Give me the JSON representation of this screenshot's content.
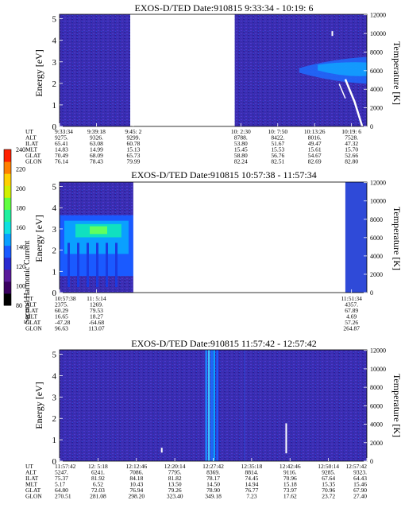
{
  "panels": [
    {
      "title": "EXOS-D/TED   Date:910815  9:33:34 - 10:19: 6",
      "left_axis_label": "Energy [eV]",
      "right_axis_label": "Temperature [K]",
      "y_ticks": [
        "0",
        "1",
        "2",
        "3",
        "4",
        "5"
      ],
      "t_ticks": [
        "0",
        "2000",
        "4000",
        "6000",
        "8000",
        "10000",
        "12000"
      ],
      "gap": [
        0.23,
        0.57
      ],
      "row_labels": [
        "UT",
        "ALT",
        "ILAT",
        "MLT",
        "GLAT",
        "GLON"
      ],
      "columns": [
        {
          "pos": 0.0,
          "values": [
            "9:33:34",
            "9275.",
            "65.41",
            "14.83",
            "70.49",
            "76.14"
          ]
        },
        {
          "pos": 0.12,
          "values": [
            "9:39:18",
            "9326.",
            "63.08",
            "14.99",
            "68.09",
            "78.43"
          ]
        },
        {
          "pos": 0.24,
          "values": [
            "9:45: 2",
            "9299.",
            "60.78",
            "15.13",
            "65.73",
            "79.99"
          ]
        },
        {
          "pos": 0.59,
          "values": [
            "10: 2:30",
            "8788.",
            "53.80",
            "15.45",
            "58.80",
            "82.24"
          ]
        },
        {
          "pos": 0.71,
          "values": [
            "10: 7:50",
            "8422.",
            "51.67",
            "15.53",
            "56.76",
            "82.51"
          ]
        },
        {
          "pos": 0.83,
          "values": [
            "10:13:26",
            "8016.",
            "49.47",
            "15.61",
            "54.67",
            "82.69"
          ]
        },
        {
          "pos": 0.95,
          "values": [
            "10:19: 6",
            "7528.",
            "47.32",
            "15.70",
            "52.66",
            "82.80"
          ]
        }
      ]
    },
    {
      "title": "EXOS-D/TED   Date:910815  10:57:38 - 11:57:34",
      "left_axis_label": "Energy [eV]",
      "right_axis_label": "Temperature [K]",
      "y_ticks": [
        "0",
        "1",
        "2",
        "3",
        "4",
        "5"
      ],
      "t_ticks": [
        "0",
        "2000",
        "4000",
        "6000",
        "8000",
        "10000",
        "12000"
      ],
      "gap": [
        0.24,
        0.93
      ],
      "row_labels": [
        "UT",
        "ALT",
        "ILAT",
        "MLT",
        "GLAT",
        "GLON"
      ],
      "columns": [
        {
          "pos": 0.0,
          "values": [
            "10:57:38",
            "2375.",
            "60.29",
            "16.65",
            "-47.28",
            "96.63"
          ]
        },
        {
          "pos": 0.12,
          "values": [
            "11: 5:14",
            "1269.",
            "79.53",
            "18.27",
            "-64.68",
            "113.07"
          ]
        },
        {
          "pos": 0.95,
          "values": [
            "11:51:34",
            "4357.",
            "67.89",
            "4.69",
            "57.26",
            "264.87"
          ]
        }
      ]
    },
    {
      "title": "EXOS-D/TED   Date:910815  11:57:42 - 12:57:42",
      "left_axis_label": "Energy [eV]",
      "right_axis_label": "Temperature [K]",
      "y_ticks": [
        "0",
        "1",
        "2",
        "3",
        "4",
        "5"
      ],
      "t_ticks": [
        "0",
        "2000",
        "4000",
        "6000",
        "8000",
        "10000",
        "12000"
      ],
      "gap": null,
      "row_labels": [
        "UT",
        "ALT",
        "ILAT",
        "MLT",
        "GLAT",
        "GLON"
      ],
      "columns": [
        {
          "pos": 0.0,
          "values": [
            "11:57:42",
            "5247.",
            "75.37",
            "5.17",
            "64.80",
            "270.51"
          ]
        },
        {
          "pos": 0.125,
          "values": [
            "12: 5:18",
            "6241.",
            "81.92",
            "6.52",
            "72.03",
            "281.08"
          ]
        },
        {
          "pos": 0.25,
          "values": [
            "12:12:46",
            "7086.",
            "84.18",
            "10.43",
            "76.94",
            "298.20"
          ]
        },
        {
          "pos": 0.375,
          "values": [
            "12:20:14",
            "7795.",
            "81.82",
            "13.50",
            "79.26",
            "323.40"
          ]
        },
        {
          "pos": 0.5,
          "values": [
            "12:27:42",
            "8369.",
            "78.17",
            "14.50",
            "78.90",
            "349.18"
          ]
        },
        {
          "pos": 0.625,
          "values": [
            "12:35:18",
            "8814.",
            "74.45",
            "14.94",
            "76.77",
            "7.23"
          ]
        },
        {
          "pos": 0.75,
          "values": [
            "12:42:46",
            "9116.",
            "70.96",
            "15.18",
            "73.97",
            "17.62"
          ]
        },
        {
          "pos": 0.875,
          "values": [
            "12:50:14",
            "9285.",
            "67.64",
            "15.35",
            "70.96",
            "23.72"
          ]
        },
        {
          "pos": 1.0,
          "values": [
            "12:57:42",
            "9323.",
            "64.43",
            "15.46",
            "67.90",
            "27.40"
          ]
        }
      ]
    }
  ],
  "colorbar": {
    "label": "Second Harmonic Current",
    "ticks": [
      "80",
      "100",
      "120",
      "140",
      "160",
      "180",
      "200",
      "220",
      "240"
    ],
    "colors": [
      "#000000",
      "#3a0060",
      "#5a1a9a",
      "#2a2ad0",
      "#1a5aff",
      "#0aa0ff",
      "#10e0e0",
      "#20f0a0",
      "#60ff40",
      "#d0f000",
      "#ffd000",
      "#ff8000",
      "#ff2000"
    ]
  },
  "chart_data": [
    {
      "type": "heatmap",
      "title": "EXOS-D/TED   Date:910815  9:33:34 - 10:19: 6",
      "ylabel": "Energy [eV]",
      "y2label": "Temperature [K]",
      "ylim": [
        0,
        5
      ],
      "y2lim": [
        0,
        12000
      ]
    },
    {
      "type": "heatmap",
      "title": "EXOS-D/TED   Date:910815  10:57:38 - 11:57:34",
      "ylabel": "Energy [eV]",
      "y2label": "Temperature [K]",
      "ylim": [
        0,
        5
      ],
      "y2lim": [
        0,
        12000
      ]
    },
    {
      "type": "heatmap",
      "title": "EXOS-D/TED   Date:910815  11:57:42 - 12:57:42",
      "ylabel": "Energy [eV]",
      "y2label": "Temperature [K]",
      "ylim": [
        0,
        5
      ],
      "y2lim": [
        0,
        12000
      ]
    }
  ]
}
